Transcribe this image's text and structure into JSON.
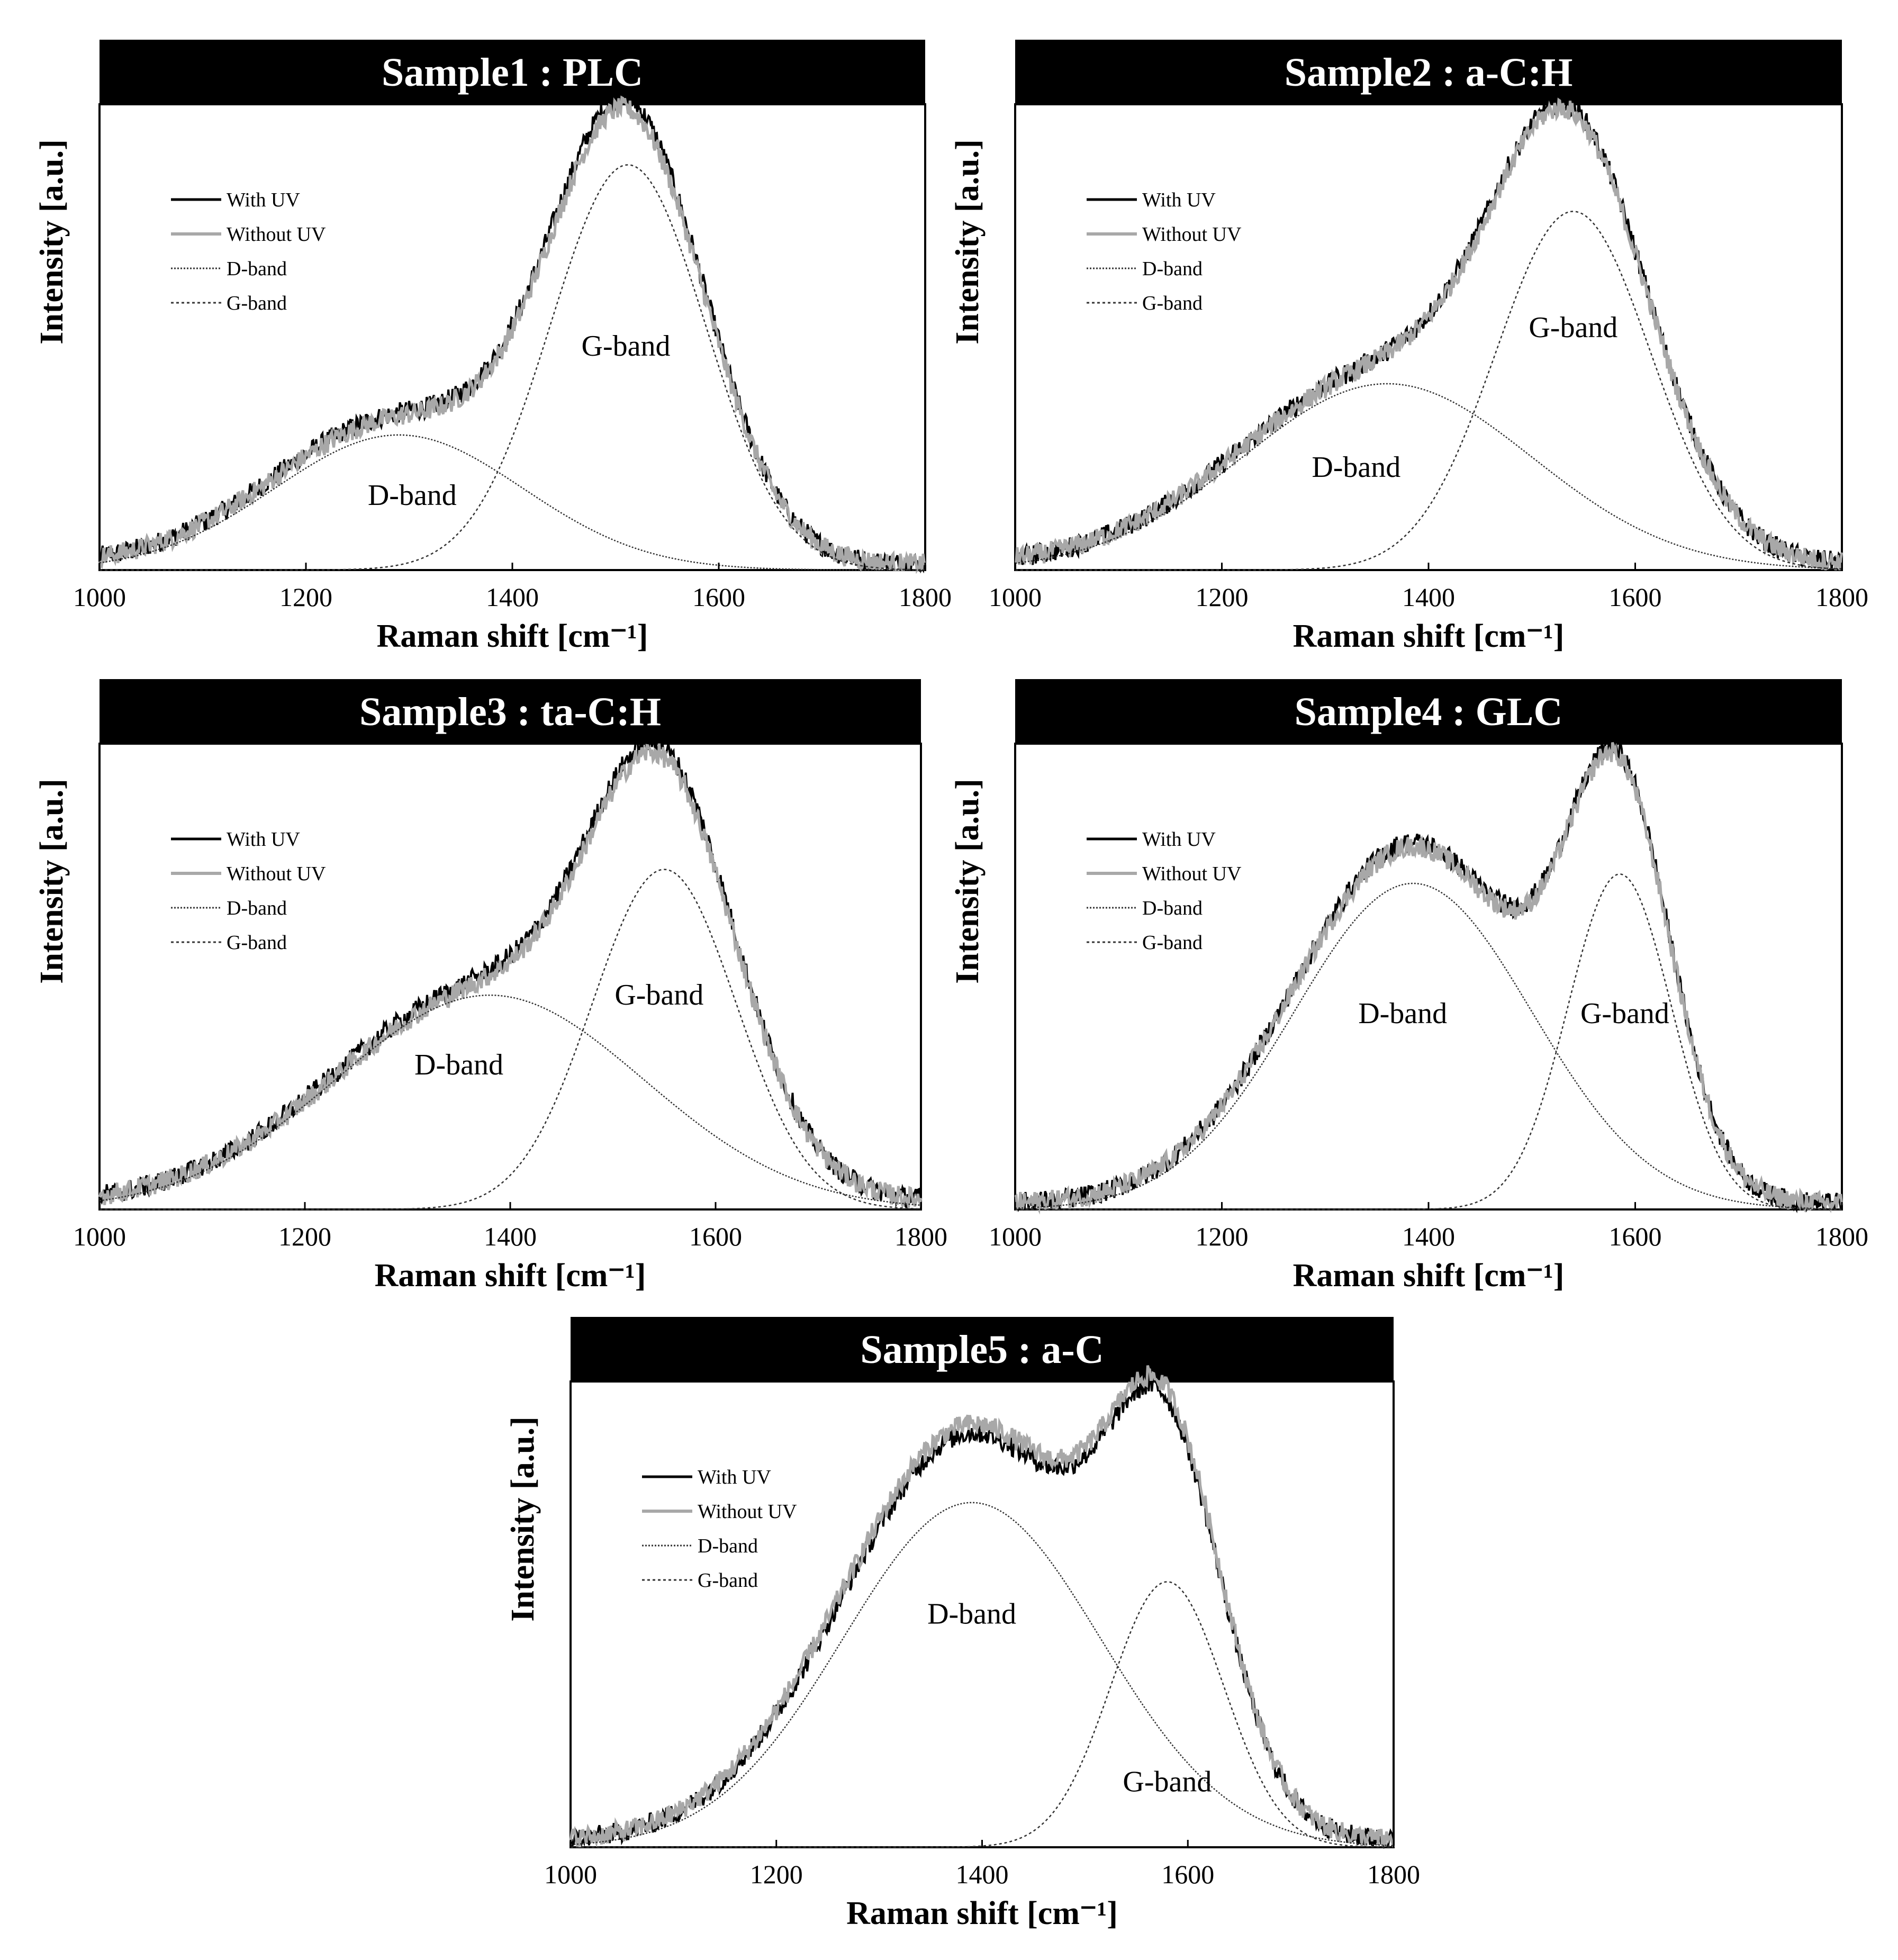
{
  "chart_data": [
    {
      "type": "line",
      "title": "Sample1 : PLC",
      "xlabel": "Raman shift [cm⁻¹]",
      "ylabel": "Intensity [a.u.]",
      "xlim": [
        1000,
        1800
      ],
      "ylim": [
        0,
        1.0
      ],
      "xticks": [
        1000,
        1200,
        1400,
        1600,
        1800
      ],
      "legend": [
        "With UV",
        "Without UV",
        "D-band",
        "G-band"
      ],
      "legend_position": "upper-left",
      "bands": {
        "D": {
          "center": 1290,
          "height": 0.29,
          "width": 120
        },
        "G": {
          "center": 1512,
          "height": 0.87,
          "width": 75
        }
      },
      "with_uv_peak": 1.0,
      "without_uv_peak": 0.98,
      "annotations": [
        {
          "text": "D-band",
          "x": 1303,
          "y": 0.14
        },
        {
          "text": "G-band",
          "x": 1510,
          "y": 0.46
        }
      ]
    },
    {
      "type": "line",
      "title": "Sample2 : a-C:H",
      "xlabel": "Raman shift [cm⁻¹]",
      "ylabel": "Intensity [a.u.]",
      "xlim": [
        1000,
        1800
      ],
      "ylim": [
        0,
        1.0
      ],
      "xticks": [
        1000,
        1200,
        1400,
        1600,
        1800
      ],
      "legend": [
        "With UV",
        "Without UV",
        "D-band",
        "G-band"
      ],
      "legend_position": "upper-left",
      "bands": {
        "D": {
          "center": 1360,
          "height": 0.4,
          "width": 140
        },
        "G": {
          "center": 1540,
          "height": 0.77,
          "width": 75
        }
      },
      "with_uv_peak": 0.99,
      "without_uv_peak": 0.98,
      "annotations": [
        {
          "text": "D-band",
          "x": 1330,
          "y": 0.2
        },
        {
          "text": "G-band",
          "x": 1540,
          "y": 0.5
        }
      ]
    },
    {
      "type": "line",
      "title": "Sample3 : ta-C:H",
      "xlabel": "Raman shift [cm⁻¹]",
      "ylabel": "Intensity [a.u.]",
      "xlim": [
        1000,
        1800
      ],
      "ylim": [
        0,
        1.0
      ],
      "xticks": [
        1000,
        1200,
        1400,
        1600,
        1800
      ],
      "legend": [
        "With UV",
        "Without UV",
        "D-band",
        "G-band"
      ],
      "legend_position": "upper-left",
      "bands": {
        "D": {
          "center": 1380,
          "height": 0.46,
          "width": 150
        },
        "G": {
          "center": 1550,
          "height": 0.73,
          "width": 70
        }
      },
      "with_uv_peak": 0.99,
      "without_uv_peak": 0.97,
      "annotations": [
        {
          "text": "D-band",
          "x": 1350,
          "y": 0.29
        },
        {
          "text": "G-band",
          "x": 1545,
          "y": 0.44
        }
      ]
    },
    {
      "type": "line",
      "title": "Sample4 : GLC",
      "xlabel": "Raman shift [cm⁻¹]",
      "ylabel": "Intensity [a.u.]",
      "xlim": [
        1000,
        1800
      ],
      "ylim": [
        0,
        1.0
      ],
      "xticks": [
        1000,
        1200,
        1400,
        1600,
        1800
      ],
      "legend": [
        "With UV",
        "Without UV",
        "D-band",
        "G-band"
      ],
      "legend_position": "upper-left",
      "bands": {
        "D": {
          "center": 1385,
          "height": 0.7,
          "width": 115
        },
        "G": {
          "center": 1585,
          "height": 0.72,
          "width": 50
        }
      },
      "with_uv_peak": 0.98,
      "without_uv_peak": 0.97,
      "annotations": [
        {
          "text": "D-band",
          "x": 1375,
          "y": 0.4
        },
        {
          "text": "G-band",
          "x": 1590,
          "y": 0.4
        }
      ]
    },
    {
      "type": "line",
      "title": "Sample5 : a-C",
      "xlabel": "Raman shift [cm⁻¹]",
      "ylabel": "Intensity [a.u.]",
      "xlim": [
        1000,
        1800
      ],
      "ylim": [
        0,
        1.0
      ],
      "xticks": [
        1000,
        1200,
        1400,
        1600,
        1800
      ],
      "legend": [
        "With UV",
        "Without UV",
        "D-band",
        "G-band"
      ],
      "legend_position": "upper-left",
      "bands": {
        "D": {
          "center": 1390,
          "height": 0.74,
          "width": 125
        },
        "G": {
          "center": 1580,
          "height": 0.57,
          "width": 55
        }
      },
      "with_uv_peak": 0.98,
      "without_uv_peak": 1.0,
      "annotations": [
        {
          "text": "D-band",
          "x": 1390,
          "y": 0.48
        },
        {
          "text": "G-band",
          "x": 1580,
          "y": 0.12
        }
      ]
    }
  ],
  "colors": {
    "with_uv": "#000000",
    "without_uv": "#a8a8a8",
    "fit": "#333333",
    "title_bg": "#000000",
    "title_fg": "#ffffff"
  }
}
